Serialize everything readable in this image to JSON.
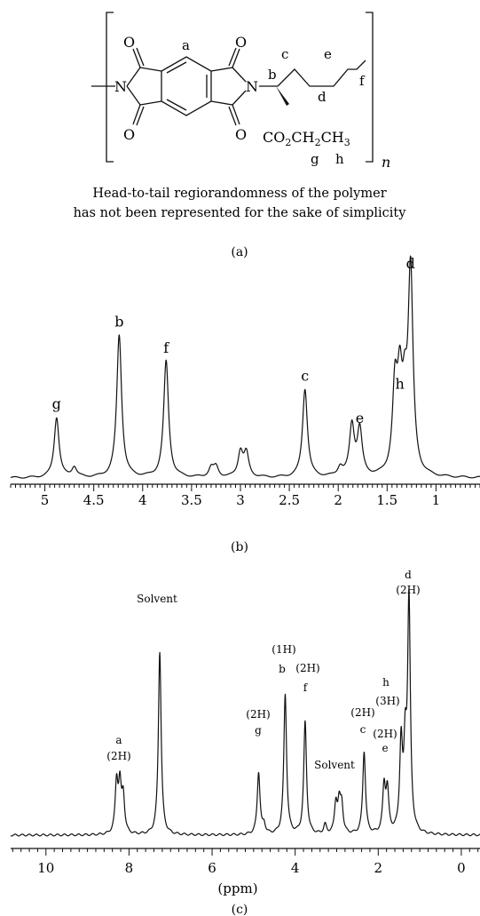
{
  "panel_a": {
    "label": "(a)",
    "note_line1": "Head-to-tail regiorandomness of the polymer",
    "note_line2": "has not been represented for the sake of simplicity",
    "structure_labels": {
      "a": "a",
      "b": "b",
      "c": "c",
      "d": "d",
      "e": "e",
      "f": "f",
      "g": "g",
      "h": "h",
      "n": "n",
      "O": "O",
      "N": "N",
      "ester_co": "CO",
      "ester_sub2": "2",
      "ester_ch": "CH",
      "ester_ch3": "CH",
      "ester_sub3": "3"
    }
  },
  "chart_data": [
    {
      "type": "line",
      "panel_label": "(b)",
      "xlabel": "",
      "xlim": [
        5.35,
        0.55
      ],
      "x_ticks": [
        "5",
        "4.5",
        "4",
        "3.5",
        "3",
        "2.5",
        "2",
        "1.5",
        "1"
      ],
      "x_tick_values": [
        5,
        4.5,
        4,
        3.5,
        3,
        2.5,
        2,
        1.5,
        1
      ],
      "peaks": [
        {
          "label": "g",
          "x": 4.88,
          "height": 0.3
        },
        {
          "label": "",
          "x": 4.7,
          "height": 0.05
        },
        {
          "label": "b",
          "x": 4.24,
          "height": 0.71
        },
        {
          "label": "f",
          "x": 3.76,
          "height": 0.58
        },
        {
          "label": "",
          "x": 3.3,
          "height": 0.045
        },
        {
          "label": "",
          "x": 3.25,
          "height": 0.05
        },
        {
          "label": "",
          "x": 3.0,
          "height": 0.125
        },
        {
          "label": "",
          "x": 2.94,
          "height": 0.115
        },
        {
          "label": "c",
          "x": 2.34,
          "height": 0.44
        },
        {
          "label": "",
          "x": 1.98,
          "height": 0.045
        },
        {
          "label": "",
          "x": 1.86,
          "height": 0.25
        },
        {
          "label": "e",
          "x": 1.78,
          "height": 0.23
        },
        {
          "label": "",
          "x": 1.42,
          "height": 0.41
        },
        {
          "label": "h",
          "x": 1.37,
          "height": 0.4
        },
        {
          "label": "",
          "x": 1.32,
          "height": 0.3
        },
        {
          "label": "d",
          "x": 1.26,
          "height": 1.0
        }
      ]
    },
    {
      "type": "line",
      "panel_label": "(c)",
      "xlabel": "(ppm)",
      "xlim": [
        10.85,
        -0.45
      ],
      "x_ticks": [
        "10",
        "8",
        "6",
        "4",
        "2",
        "0"
      ],
      "x_tick_values": [
        10,
        8,
        6,
        4,
        2,
        0
      ],
      "peaks": [
        {
          "label": "",
          "x": 8.3,
          "height": 0.22
        },
        {
          "label": "",
          "x": 8.22,
          "height": 0.2
        },
        {
          "label": "",
          "x": 8.14,
          "height": 0.16
        },
        {
          "label": "Solvent",
          "x": 7.26,
          "height": 0.8
        },
        {
          "label": "",
          "x": 4.75,
          "height": 0.04
        },
        {
          "label": "g",
          "x": 4.88,
          "height": 0.27
        },
        {
          "label": "b",
          "x": 4.24,
          "height": 0.61
        },
        {
          "label": "f",
          "x": 3.76,
          "height": 0.49
        },
        {
          "label": "",
          "x": 3.28,
          "height": 0.04
        },
        {
          "label": "",
          "x": 3.02,
          "height": 0.13
        },
        {
          "label": "",
          "x": 2.94,
          "height": 0.12
        },
        {
          "label": "",
          "x": 2.88,
          "height": 0.12
        },
        {
          "label": "c",
          "x": 2.34,
          "height": 0.36
        },
        {
          "label": "",
          "x": 1.86,
          "height": 0.2
        },
        {
          "label": "e",
          "x": 1.78,
          "height": 0.18
        },
        {
          "label": "",
          "x": 1.45,
          "height": 0.38
        },
        {
          "label": "",
          "x": 1.35,
          "height": 0.33
        },
        {
          "label": "d",
          "x": 1.26,
          "height": 1.0
        }
      ],
      "annotations": [
        {
          "id": "a",
          "text": "a"
        },
        {
          "id": "a_int",
          "text": "(2H)"
        },
        {
          "id": "solvent1",
          "text": "Solvent"
        },
        {
          "id": "g",
          "text": "g"
        },
        {
          "id": "g_int",
          "text": "(2H)"
        },
        {
          "id": "b",
          "text": "b"
        },
        {
          "id": "b_int",
          "text": "(1H)"
        },
        {
          "id": "f",
          "text": "f"
        },
        {
          "id": "f_int",
          "text": "(2H)"
        },
        {
          "id": "solvent2",
          "text": "Solvent"
        },
        {
          "id": "c",
          "text": "c"
        },
        {
          "id": "c_int",
          "text": "(2H)"
        },
        {
          "id": "e",
          "text": "e"
        },
        {
          "id": "e_int",
          "text": "(2H)"
        },
        {
          "id": "h",
          "text": "h"
        },
        {
          "id": "h_int",
          "text": "(3H)"
        },
        {
          "id": "d",
          "text": "d"
        },
        {
          "id": "d_int",
          "text": "(2H)"
        }
      ]
    }
  ]
}
